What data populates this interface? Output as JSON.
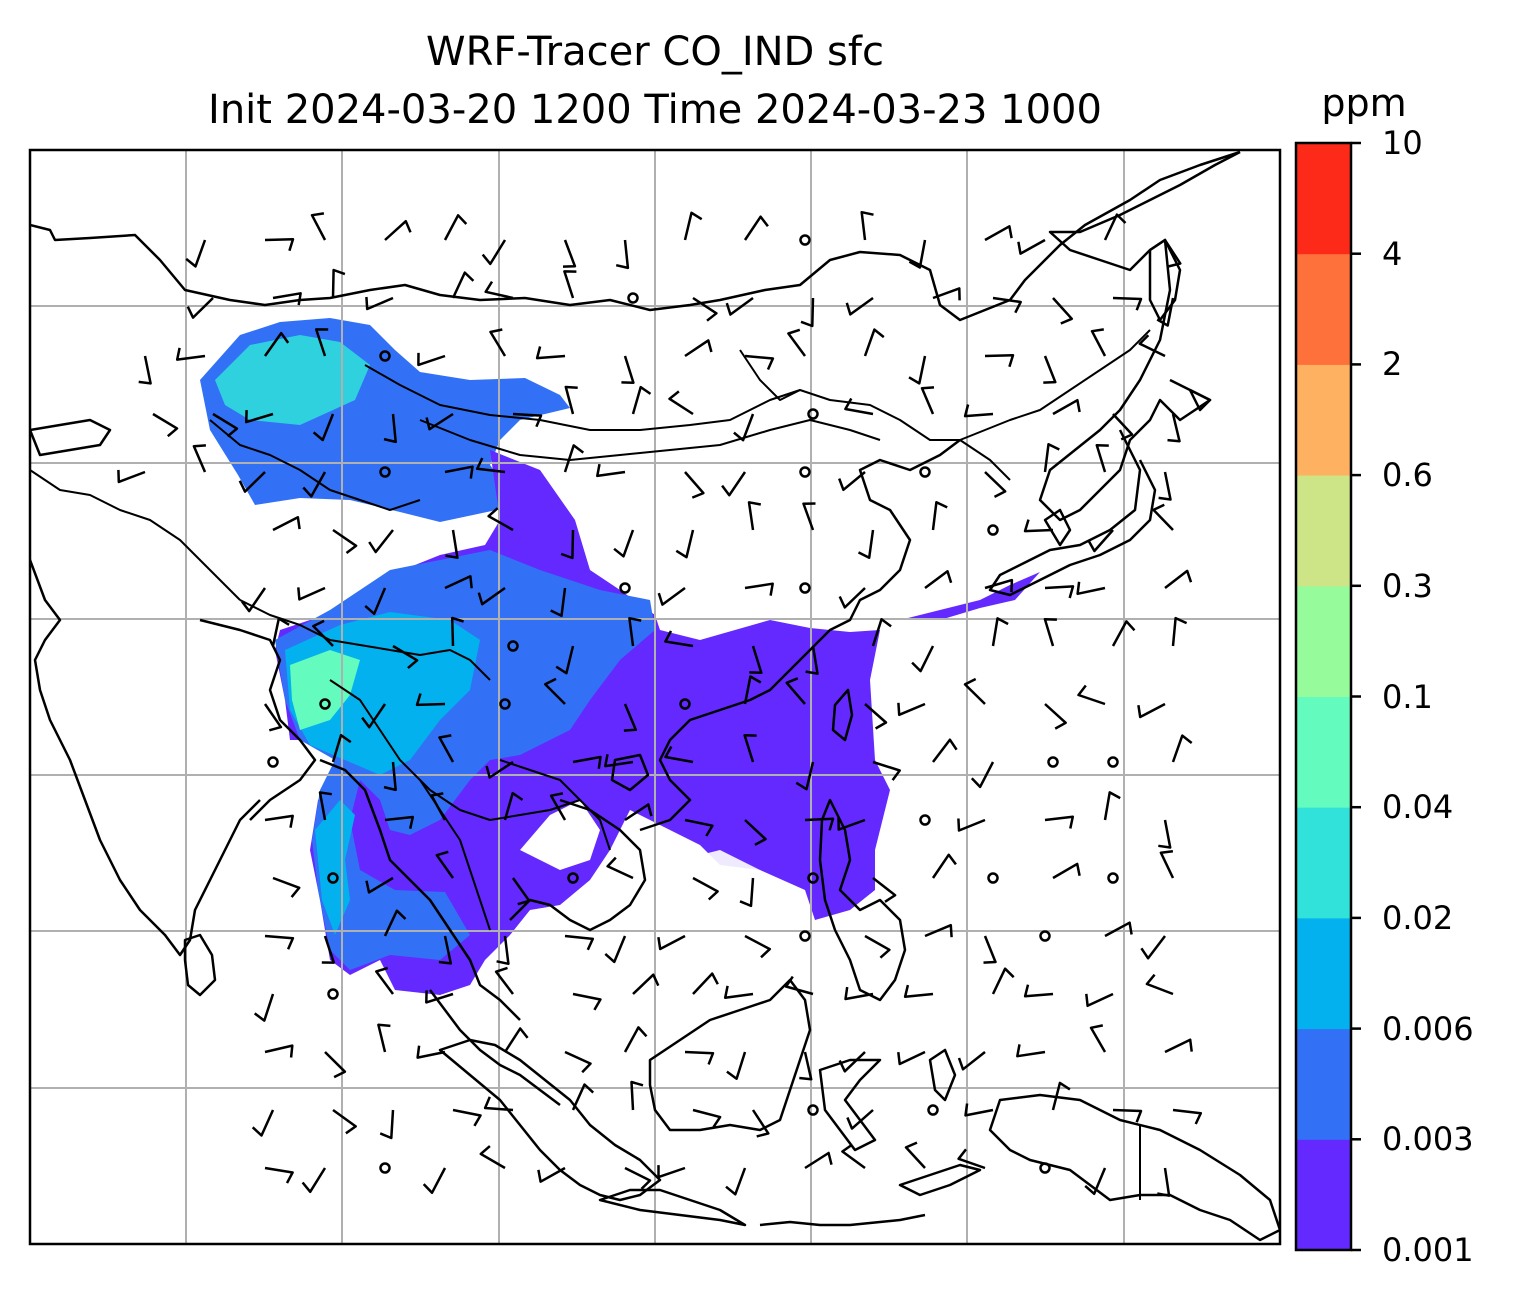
{
  "title": {
    "line1": "WRF-Tracer CO_IND sfc",
    "line2": "Init 2024-03-20 1200 Time 2024-03-23 1000"
  },
  "colorbar": {
    "unit": "ppm",
    "tick_labels": [
      "0.001",
      "0.003",
      "0.006",
      "0.02",
      "0.04",
      "0.1",
      "0.3",
      "0.6",
      "2",
      "4",
      "10"
    ],
    "colors": [
      "#6329fe",
      "#3271f6",
      "#02b1ee",
      "#30e2d9",
      "#64fbbe",
      "#96fb9a",
      "#cee587",
      "#feb161",
      "#ff713a",
      "#fe2a19"
    ]
  },
  "map": {
    "field": "CO_IND surface tracer concentration",
    "features": [
      "coastlines",
      "country-borders",
      "lat-lon-gridlines",
      "wind-barbs",
      "calm-wind-circles"
    ],
    "gridlines": true
  }
}
